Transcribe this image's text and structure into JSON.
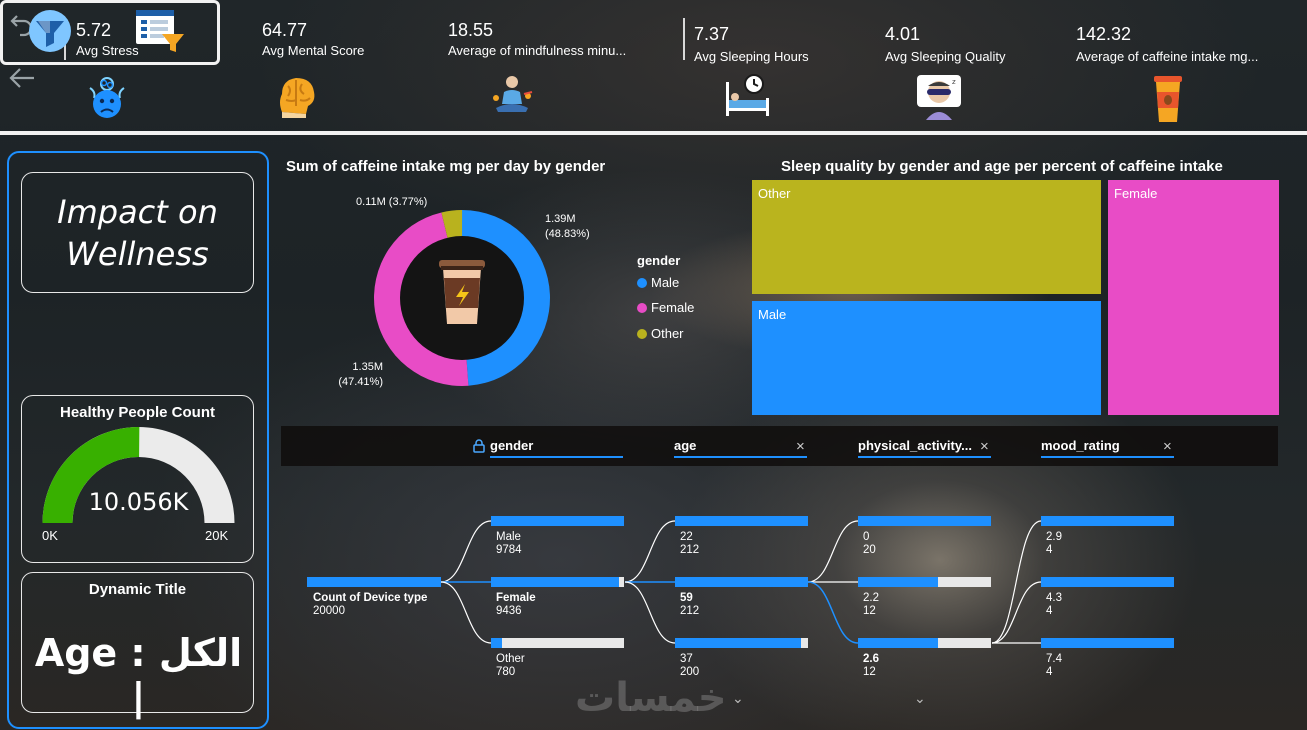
{
  "nav": {
    "undo_icon": "undo-icon",
    "back_icon": "back-arrow-icon"
  },
  "kpis": [
    {
      "value": "5.72",
      "label": "Avg Stress",
      "icon": "stressed-face-icon"
    },
    {
      "value": "64.77",
      "label": "Avg Mental Score",
      "icon": "brain-icon"
    },
    {
      "value": "18.55",
      "label": "Average of mindfulness minu...",
      "icon": "meditation-icon"
    },
    {
      "value": "7.37",
      "label": "Avg Sleeping Hours",
      "icon": "sleeping-bed-icon"
    },
    {
      "value": "4.01",
      "label": "Avg Sleeping Quality",
      "icon": "sleep-mask-icon"
    },
    {
      "value": "142.32",
      "label": "Average of caffeine intake mg...",
      "icon": "coffee-cup-icon"
    }
  ],
  "left_panel": {
    "title_line1": "Impact on",
    "title_line2": "Wellness",
    "gauge": {
      "title": "Healthy People Count",
      "value_label": "10.056K",
      "min_label": "0K",
      "max_label": "20K",
      "value": 10056,
      "min": 0,
      "max": 20000
    },
    "dynamic": {
      "title": "Dynamic Title",
      "text": "الكل : Age |"
    }
  },
  "donut": {
    "title": "Sum of caffeine intake mg per day by gender",
    "legend_title": "gender",
    "segments": [
      {
        "name": "Male",
        "value_label": "1.39M",
        "pct_label": "(48.83%)",
        "pct": 48.83,
        "color": "#1e90ff"
      },
      {
        "name": "Female",
        "value_label": "1.35M",
        "pct_label": "(47.41%)",
        "pct": 47.41,
        "color": "#e84cc6"
      },
      {
        "name": "Other",
        "value_label": "0.11M",
        "pct_label": "(3.77%)",
        "pct": 3.77,
        "color": "#b9b21e"
      }
    ],
    "other_label": "0.11M (3.77%)"
  },
  "treemap": {
    "title": "Sleep quality by gender and age per percent of caffeine intake",
    "blocks": [
      {
        "label": "Other",
        "color": "#bab41e"
      },
      {
        "label": "Male",
        "color": "#1e90ff"
      },
      {
        "label": "Female",
        "color": "#e84cc6"
      }
    ]
  },
  "decomposition": {
    "headers": [
      {
        "label": "gender",
        "icon": "lock-icon"
      },
      {
        "label": "age",
        "close": "×"
      },
      {
        "label": "physical_activity...",
        "close": "×"
      },
      {
        "label": "mood_rating",
        "close": "×"
      }
    ],
    "root": {
      "label": "Count of Device type",
      "value": "20000",
      "fraction": 1.0
    },
    "gender": [
      {
        "label": "Male",
        "value": "9784",
        "fraction": 1.0
      },
      {
        "label": "Female",
        "value": "9436",
        "fraction": 0.965,
        "bold": true
      },
      {
        "label": "Other",
        "value": "780",
        "fraction": 0.08
      }
    ],
    "age": [
      {
        "label": "22",
        "value": "212",
        "fraction": 1.0
      },
      {
        "label": "59",
        "value": "212",
        "fraction": 1.0,
        "bold": true
      },
      {
        "label": "37",
        "value": "200",
        "fraction": 0.944
      }
    ],
    "activity": [
      {
        "label": "0",
        "value": "20",
        "fraction": 1.0
      },
      {
        "label": "2.2",
        "value": "12",
        "fraction": 0.6
      },
      {
        "label": "2.6",
        "value": "12",
        "fraction": 0.6,
        "bold": true
      }
    ],
    "mood": [
      {
        "label": "2.9",
        "value": "4",
        "fraction": 1.0
      },
      {
        "label": "4.3",
        "value": "4",
        "fraction": 1.0
      },
      {
        "label": "7.4",
        "value": "4",
        "fraction": 1.0
      }
    ]
  },
  "watermark": "خمسات",
  "chevron": "⌄"
}
